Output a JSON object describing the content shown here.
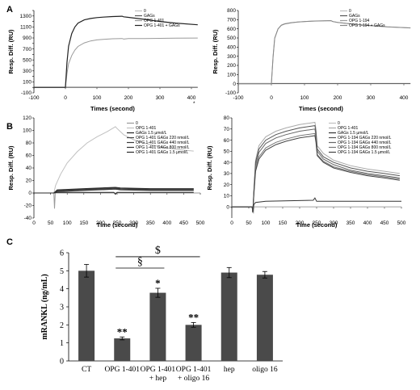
{
  "panel_letters": [
    "A",
    "B",
    "C"
  ],
  "stray_mark": "*",
  "colors": {
    "dark": "#222222",
    "mid": "#555555",
    "light": "#9a9a9a",
    "lighter": "#c0c0c0",
    "bar": "#4a4a4a"
  },
  "chart_data": [
    {
      "id": "A-left",
      "type": "line",
      "xlabel": "Times (second)",
      "ylabel": "Resp. Diff. (RU)",
      "xlim": [
        -100,
        400
      ],
      "ylim": [
        -100,
        1400
      ],
      "xticks": [
        -100,
        0,
        100,
        200,
        300,
        400
      ],
      "yticks": [
        -100,
        0,
        100,
        200,
        300,
        400,
        500,
        600,
        700,
        800,
        900,
        1000,
        1100,
        1200,
        1300,
        1400
      ],
      "legend": [
        "0",
        "GAGs",
        "OPG 1-401",
        "OPG 1-401 + GAGs"
      ],
      "series": [
        {
          "name": "0",
          "color": "#c0c0c0",
          "x": [
            -100,
            420
          ],
          "y": [
            0,
            0
          ]
        },
        {
          "name": "GAGs",
          "color": "#555555",
          "x": [
            -100,
            420
          ],
          "y": [
            2,
            2
          ]
        },
        {
          "name": "OPG 1-401",
          "color": "#9a9a9a",
          "x": [
            -100,
            0,
            5,
            10,
            20,
            30,
            40,
            60,
            80,
            100,
            120,
            150,
            180,
            185,
            200,
            250,
            300,
            350,
            420
          ],
          "y": [
            0,
            0,
            250,
            430,
            580,
            680,
            745,
            810,
            845,
            865,
            875,
            885,
            890,
            880,
            888,
            890,
            892,
            895,
            898
          ]
        },
        {
          "name": "OPG 1-401 + GAGs",
          "color": "#222222",
          "x": [
            -100,
            0,
            5,
            10,
            20,
            30,
            40,
            60,
            80,
            100,
            120,
            150,
            180,
            185,
            200,
            250,
            300,
            350,
            420
          ],
          "y": [
            0,
            0,
            450,
            750,
            980,
            1100,
            1170,
            1230,
            1255,
            1270,
            1280,
            1290,
            1295,
            1285,
            1275,
            1240,
            1200,
            1170,
            1140
          ]
        }
      ]
    },
    {
      "id": "A-right",
      "type": "line",
      "xlabel": "Times (second)",
      "ylabel": "Resp. Diff. (RU)",
      "xlim": [
        -100,
        400
      ],
      "ylim": [
        -100,
        800
      ],
      "xticks": [
        -100,
        0,
        100,
        200,
        300,
        400
      ],
      "yticks": [
        -100,
        0,
        100,
        200,
        300,
        400,
        500,
        600,
        700,
        800
      ],
      "legend": [
        "0",
        "GAGs",
        "OPG 1-194",
        "OPG 1-194 + GAGs"
      ],
      "series": [
        {
          "name": "0",
          "color": "#c0c0c0",
          "x": [
            -100,
            420
          ],
          "y": [
            0,
            0
          ]
        },
        {
          "name": "GAGs",
          "color": "#555555",
          "x": [
            -100,
            420
          ],
          "y": [
            2,
            2
          ]
        },
        {
          "name": "OPG 1-194",
          "color": "#9a9a9a",
          "x": [
            -100,
            0,
            5,
            10,
            20,
            30,
            40,
            60,
            80,
            100,
            130,
            180,
            185,
            200,
            250,
            300,
            350,
            420
          ],
          "y": [
            0,
            0,
            300,
            500,
            600,
            640,
            655,
            668,
            675,
            680,
            685,
            690,
            680,
            670,
            650,
            635,
            622,
            610
          ]
        },
        {
          "name": "OPG 1-194 + GAGs",
          "color": "#888888",
          "x": [
            -100,
            0,
            5,
            10,
            20,
            30,
            40,
            60,
            80,
            100,
            130,
            180,
            185,
            200,
            250,
            300,
            350,
            420
          ],
          "y": [
            0,
            0,
            290,
            495,
            598,
            638,
            652,
            666,
            674,
            679,
            684,
            689,
            679,
            669,
            649,
            634,
            621,
            609
          ]
        }
      ]
    },
    {
      "id": "B-left",
      "type": "line",
      "xlabel": "Time (second)",
      "ylabel": "Resp. Diff. (RU)",
      "xlim": [
        0,
        500
      ],
      "ylim": [
        -40,
        120
      ],
      "xticks": [
        0,
        50,
        100,
        150,
        200,
        250,
        300,
        350,
        400,
        450,
        500
      ],
      "yticks": [
        -40,
        -20,
        0,
        20,
        40,
        60,
        80,
        100,
        120
      ],
      "legend": [
        "0",
        "OPG 1-401",
        "GAGs 1.5 µmol/L",
        "OPG 1-401 GAGs 220 nmol/L",
        "OPG 1-401 GAGs 440 nmol/L",
        "OPG 1-401 GAGs 800 nmol/L",
        "OPG 1-401 GAGs 1.5 µmol/L"
      ],
      "series": [
        {
          "name": "0",
          "color": "#999999",
          "x": [
            0,
            60,
            62,
            64,
            70,
            500
          ],
          "y": [
            0,
            0,
            -25,
            0,
            0,
            0
          ]
        },
        {
          "name": "OPG 1-401",
          "color": "#c0c0c0",
          "x": [
            0,
            60,
            65,
            80,
            100,
            130,
            160,
            190,
            220,
            245,
            250,
            270,
            300,
            330,
            360,
            400,
            440,
            480
          ],
          "y": [
            0,
            0,
            12,
            30,
            48,
            66,
            80,
            90,
            98,
            106,
            103,
            93,
            85,
            80,
            76,
            72,
            69,
            67
          ]
        },
        {
          "name": "GAGs 1.5 µmol/L",
          "color": "#222222",
          "x": [
            0,
            60,
            70,
            100,
            240,
            245,
            250,
            480
          ],
          "y": [
            0,
            0,
            1,
            1,
            1,
            -2,
            1,
            1
          ]
        },
        {
          "name": "OPG 1-401 GAGs 220 nmol/L",
          "color": "#444444",
          "x": [
            0,
            60,
            70,
            150,
            245,
            260,
            350,
            480
          ],
          "y": [
            0,
            0,
            3,
            5,
            7,
            6,
            5,
            5
          ]
        },
        {
          "name": "OPG 1-401 GAGs 440 nmol/L",
          "color": "#3a3a3a",
          "x": [
            0,
            60,
            70,
            150,
            245,
            260,
            350,
            480
          ],
          "y": [
            0,
            0,
            4,
            6,
            8,
            7,
            6,
            6
          ]
        },
        {
          "name": "OPG 1-401 GAGs 800 nmol/L",
          "color": "#333333",
          "x": [
            0,
            60,
            70,
            150,
            245,
            260,
            350,
            480
          ],
          "y": [
            0,
            0,
            2,
            4,
            6,
            5,
            4,
            4
          ]
        },
        {
          "name": "OPG 1-401 GAGs 1.5 µmol/L",
          "color": "#2a2a2a",
          "x": [
            0,
            60,
            70,
            150,
            245,
            260,
            350,
            480
          ],
          "y": [
            0,
            0,
            5,
            7,
            9,
            8,
            7,
            7
          ]
        }
      ]
    },
    {
      "id": "B-right",
      "type": "line",
      "xlabel": "Time (second)",
      "ylabel": "Resp. Diff. (RU)",
      "xlim": [
        0,
        500
      ],
      "ylim": [
        -10,
        80
      ],
      "xticks": [
        0,
        50,
        100,
        150,
        200,
        250,
        300,
        350,
        400,
        450,
        500
      ],
      "yticks": [
        0,
        10,
        20,
        30,
        40,
        50,
        60,
        70,
        80
      ],
      "legend": [
        "0",
        "OPG 1-401",
        "GAGs 1.5 µmol/L",
        "OPG 1-194 GAGs 220 nmol/L",
        "OPG 1-194 GAGs 440 nmol/L",
        "OPG 1-194 GAGs 800 nmol/L",
        "OPG 1-194 GAGs 1.5 µmol/L"
      ],
      "series": [
        {
          "name": "0",
          "color": "#c0c0c0",
          "x": [
            0,
            60,
            62,
            64,
            66,
            500
          ],
          "y": [
            0,
            0,
            -3,
            -6,
            0,
            0
          ]
        },
        {
          "name": "OPG 1-401",
          "color": "#aaaaaa",
          "x": [
            0,
            60,
            62,
            65,
            70,
            80,
            100,
            130,
            160,
            200,
            245,
            248,
            252,
            270,
            300,
            350,
            400,
            450,
            495
          ],
          "y": [
            0,
            0,
            -5,
            15,
            42,
            55,
            63,
            68,
            71,
            74,
            76,
            70,
            55,
            48,
            42,
            37,
            34,
            32,
            30
          ]
        },
        {
          "name": "GAGs 1.5 µmol/L",
          "color": "#333333",
          "x": [
            0,
            60,
            62,
            65,
            70,
            100,
            240,
            245,
            250,
            500
          ],
          "y": [
            0,
            0,
            -5,
            2,
            4,
            5,
            6,
            8,
            5,
            5
          ]
        },
        {
          "name": "OPG 1-194 GAGs 220 nmol/L",
          "color": "#555555",
          "x": [
            0,
            60,
            62,
            65,
            70,
            80,
            100,
            130,
            160,
            200,
            245,
            248,
            252,
            270,
            300,
            350,
            400,
            450,
            495
          ],
          "y": [
            0,
            0,
            -5,
            14,
            40,
            52,
            60,
            65,
            68,
            71,
            73,
            67,
            52,
            45,
            40,
            35,
            32,
            30,
            28
          ]
        },
        {
          "name": "OPG 1-194 GAGs 440 nmol/L",
          "color": "#666666",
          "x": [
            0,
            60,
            62,
            65,
            70,
            80,
            100,
            130,
            160,
            200,
            245,
            248,
            252,
            270,
            300,
            350,
            400,
            450,
            495
          ],
          "y": [
            0,
            0,
            -5,
            13,
            37,
            49,
            57,
            62,
            65,
            68,
            70,
            64,
            50,
            43,
            38,
            33,
            30,
            28,
            26
          ]
        },
        {
          "name": "OPG 1-194 GAGs 800 nmol/L",
          "color": "#777777",
          "x": [
            0,
            60,
            62,
            65,
            70,
            80,
            100,
            130,
            160,
            200,
            245,
            248,
            252,
            270,
            300,
            350,
            400,
            450,
            495
          ],
          "y": [
            0,
            0,
            -5,
            12,
            34,
            45,
            53,
            58,
            61,
            64,
            66,
            60,
            47,
            41,
            36,
            32,
            29,
            27,
            25
          ]
        },
        {
          "name": "OPG 1-194 GAGs 1.5 µmol/L",
          "color": "#444444",
          "x": [
            0,
            60,
            62,
            65,
            70,
            80,
            100,
            130,
            160,
            200,
            245,
            248,
            252,
            270,
            300,
            350,
            400,
            450,
            495
          ],
          "y": [
            0,
            0,
            -5,
            11,
            32,
            43,
            51,
            56,
            59,
            62,
            64,
            58,
            46,
            40,
            35,
            31,
            28,
            26,
            24
          ]
        }
      ]
    },
    {
      "id": "C",
      "type": "bar",
      "ylabel": "mRANKL (ng/mL)",
      "ylim": [
        0,
        6
      ],
      "yticks": [
        0,
        1,
        2,
        3,
        4,
        5,
        6
      ],
      "categories": [
        "CT",
        "OPG 1-401",
        "OPG 1-401\n+ hep",
        "OPG 1-401\n+ oligo 16",
        "hep",
        "oligo 16"
      ],
      "values": [
        5.0,
        1.25,
        3.78,
        2.0,
        4.9,
        4.78
      ],
      "errors": [
        0.35,
        0.08,
        0.25,
        0.13,
        0.28,
        0.18
      ],
      "significance": [
        "",
        "**",
        "*",
        "**",
        "",
        ""
      ],
      "brackets": [
        {
          "symbol": "§",
          "from": 1,
          "to": 2,
          "level": 5.15
        },
        {
          "symbol": "$",
          "from": 1,
          "to": 3,
          "level": 5.78
        }
      ]
    }
  ]
}
